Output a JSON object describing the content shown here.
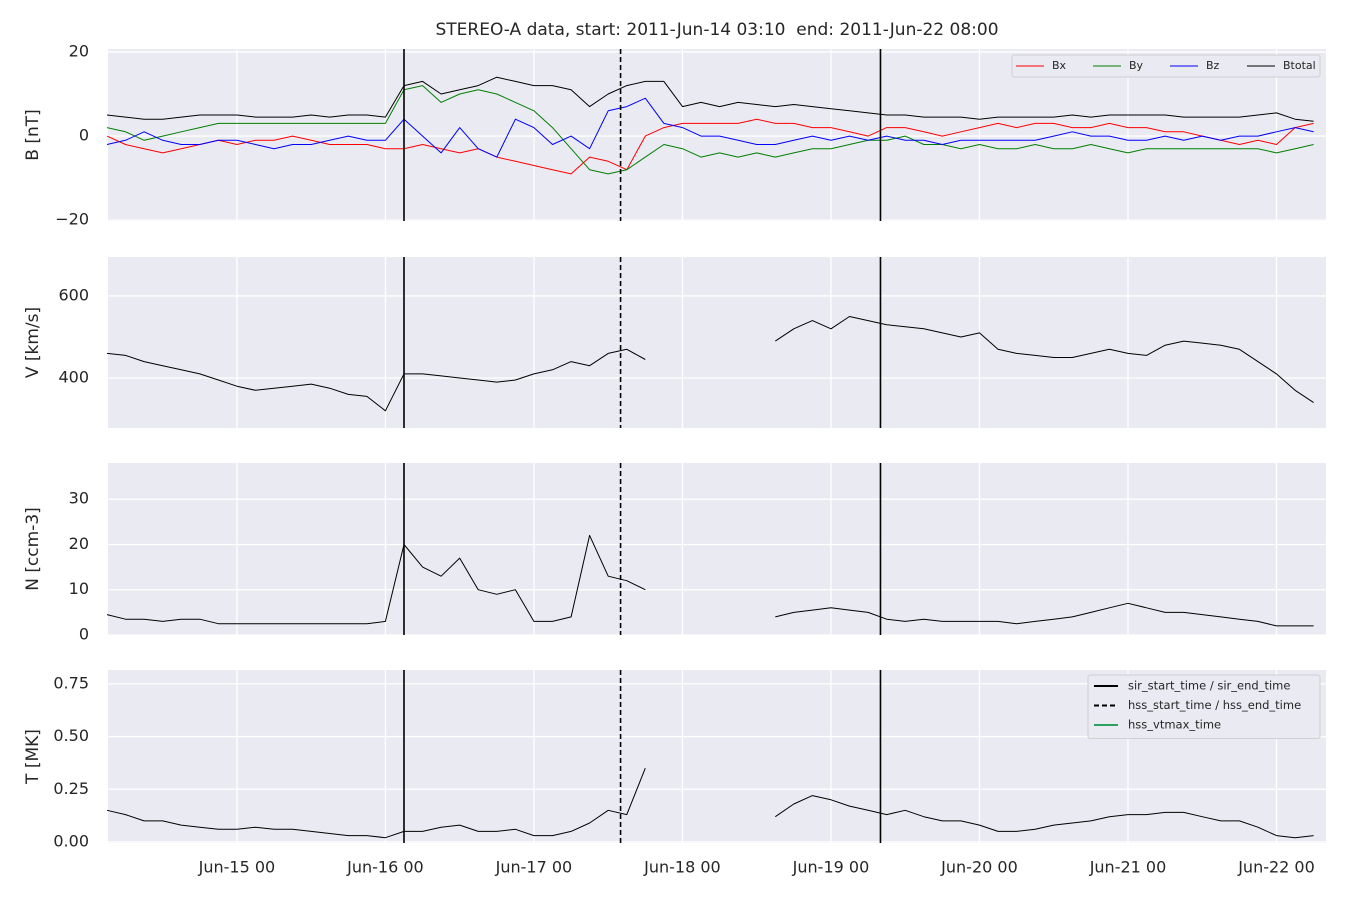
{
  "chart_data": [
    {
      "type": "line",
      "title": "STEREO-A data, start: 2011-Jun-14 03:10  end: 2011-Jun-22 08:00",
      "ylabel": "B [nT]",
      "xlim": [
        "Jun-14 03:10",
        "Jun-22 08:00"
      ],
      "ylim": [
        -20.2,
        20.7
      ],
      "yticks": [
        {
          "value": -20,
          "label": "−20"
        },
        0,
        20
      ],
      "grid": true,
      "legend": "upper right",
      "legend_ncol": 4,
      "x": [
        "Jun-14 03",
        "Jun-14 06",
        "Jun-14 09",
        "Jun-14 12",
        "Jun-14 15",
        "Jun-14 18",
        "Jun-14 21",
        "Jun-15 00",
        "Jun-15 03",
        "Jun-15 06",
        "Jun-15 09",
        "Jun-15 12",
        "Jun-15 15",
        "Jun-15 18",
        "Jun-15 21",
        "Jun-16 00",
        "Jun-16 03",
        "Jun-16 06",
        "Jun-16 09",
        "Jun-16 12",
        "Jun-16 15",
        "Jun-16 18",
        "Jun-16 21",
        "Jun-17 00",
        "Jun-17 03",
        "Jun-17 06",
        "Jun-17 09",
        "Jun-17 12",
        "Jun-17 15",
        "Jun-17 18",
        "Jun-17 21",
        "Jun-18 00",
        "Jun-18 03",
        "Jun-18 06",
        "Jun-18 09",
        "Jun-18 12",
        "Jun-18 15",
        "Jun-18 18",
        "Jun-18 21",
        "Jun-19 00",
        "Jun-19 03",
        "Jun-19 06",
        "Jun-19 09",
        "Jun-19 12",
        "Jun-19 15",
        "Jun-19 18",
        "Jun-19 21",
        "Jun-20 00",
        "Jun-20 03",
        "Jun-20 06",
        "Jun-20 09",
        "Jun-20 12",
        "Jun-20 15",
        "Jun-20 18",
        "Jun-20 21",
        "Jun-21 00",
        "Jun-21 03",
        "Jun-21 06",
        "Jun-21 09",
        "Jun-21 12",
        "Jun-21 15",
        "Jun-21 18",
        "Jun-21 21",
        "Jun-22 00",
        "Jun-22 03",
        "Jun-22 06"
      ],
      "series": [
        {
          "name": "Bx",
          "color": "#ff0000",
          "values": [
            0,
            -2,
            -3,
            -4,
            -3,
            -2,
            -1,
            -2,
            -1,
            -1,
            0,
            -1,
            -2,
            -2,
            -2,
            -3,
            -3,
            -2,
            -3,
            -4,
            -3,
            -5,
            -6,
            -7,
            -8,
            -9,
            -5,
            -6,
            -8,
            0,
            2,
            3,
            3,
            3,
            3,
            4,
            3,
            3,
            2,
            2,
            1,
            0,
            2,
            2,
            1,
            0,
            1,
            2,
            3,
            2,
            3,
            3,
            2,
            2,
            3,
            2,
            2,
            1,
            1,
            0,
            -1,
            -2,
            -1,
            -2,
            2,
            3
          ]
        },
        {
          "name": "By",
          "color": "#008000",
          "values": [
            2,
            1,
            -1,
            0,
            1,
            2,
            3,
            3,
            3,
            3,
            3,
            3,
            3,
            3,
            3,
            3,
            11,
            12,
            8,
            10,
            11,
            10,
            8,
            6,
            2,
            -3,
            -8,
            -9,
            -8,
            -5,
            -2,
            -3,
            -5,
            -4,
            -5,
            -4,
            -5,
            -4,
            -3,
            -3,
            -2,
            -1,
            -1,
            0,
            -2,
            -2,
            -3,
            -2,
            -3,
            -3,
            -2,
            -3,
            -3,
            -2,
            -3,
            -4,
            -3,
            -3,
            -3,
            -3,
            -3,
            -3,
            -3,
            -4,
            -3,
            -2
          ]
        },
        {
          "name": "Bz",
          "color": "#0000ff",
          "values": [
            -2,
            -1,
            1,
            -1,
            -2,
            -2,
            -1,
            -1,
            -2,
            -3,
            -2,
            -2,
            -1,
            0,
            -1,
            -1,
            4,
            0,
            -4,
            2,
            -3,
            -5,
            4,
            2,
            -2,
            0,
            -3,
            6,
            7,
            9,
            3,
            2,
            0,
            0,
            -1,
            -2,
            -2,
            -1,
            0,
            -1,
            0,
            -1,
            0,
            -1,
            -1,
            -2,
            -1,
            -1,
            -1,
            -1,
            -1,
            0,
            1,
            0,
            0,
            -1,
            -1,
            0,
            -1,
            0,
            -1,
            0,
            0,
            1,
            2,
            1
          ]
        },
        {
          "name": "Btotal",
          "color": "#000000",
          "values": [
            5,
            4.5,
            4,
            4,
            4.5,
            5,
            5,
            5,
            4.5,
            4.5,
            4.5,
            5,
            4.5,
            5,
            5,
            4.5,
            12,
            13,
            10,
            11,
            12,
            14,
            13,
            12,
            12,
            11,
            7,
            10,
            12,
            13,
            13,
            7,
            8,
            7,
            8,
            7.5,
            7,
            7.5,
            7,
            6.5,
            6,
            5.5,
            5,
            5,
            4.5,
            4.5,
            4.5,
            4,
            4.5,
            4.5,
            4.5,
            4.5,
            5,
            4.5,
            5,
            5,
            5,
            5,
            4.5,
            4.5,
            4.5,
            4.5,
            5,
            5.5,
            4,
            3.5
          ]
        }
      ]
    },
    {
      "type": "line",
      "ylabel": "V [km/s]",
      "xlim": [
        "Jun-14 03:10",
        "Jun-22 08:00"
      ],
      "ylim": [
        278,
        695
      ],
      "yticks": [
        400,
        600
      ],
      "grid": true,
      "x": [
        "Jun-14 03",
        "Jun-14 06",
        "Jun-14 09",
        "Jun-14 12",
        "Jun-14 15",
        "Jun-14 18",
        "Jun-14 21",
        "Jun-15 00",
        "Jun-15 03",
        "Jun-15 06",
        "Jun-15 09",
        "Jun-15 12",
        "Jun-15 15",
        "Jun-15 18",
        "Jun-15 21",
        "Jun-16 00",
        "Jun-16 03",
        "Jun-16 06",
        "Jun-16 09",
        "Jun-16 12",
        "Jun-16 15",
        "Jun-16 18",
        "Jun-16 21",
        "Jun-17 00",
        "Jun-17 03",
        "Jun-17 06",
        "Jun-17 09",
        "Jun-17 12",
        "Jun-17 15",
        "Jun-17 18",
        "Jun-17 21",
        "Jun-18 00",
        "Jun-18 03",
        "Jun-18 06",
        "Jun-18 09",
        "Jun-18 12",
        "Jun-18 15",
        "Jun-18 18",
        "Jun-18 21",
        "Jun-19 00",
        "Jun-19 03",
        "Jun-19 06",
        "Jun-19 09",
        "Jun-19 12",
        "Jun-19 15",
        "Jun-19 18",
        "Jun-19 21",
        "Jun-20 00",
        "Jun-20 03",
        "Jun-20 06",
        "Jun-20 09",
        "Jun-20 12",
        "Jun-20 15",
        "Jun-20 18",
        "Jun-20 21",
        "Jun-21 00",
        "Jun-21 03",
        "Jun-21 06",
        "Jun-21 09",
        "Jun-21 12",
        "Jun-21 15",
        "Jun-21 18",
        "Jun-21 21",
        "Jun-22 00",
        "Jun-22 03",
        "Jun-22 06"
      ],
      "series": [
        {
          "color": "#000000",
          "values": [
            460,
            455,
            440,
            430,
            420,
            410,
            395,
            380,
            370,
            375,
            380,
            385,
            375,
            360,
            355,
            320,
            410,
            410,
            405,
            400,
            395,
            390,
            395,
            410,
            420,
            440,
            430,
            460,
            470,
            445,
            null,
            null,
            null,
            null,
            null,
            null,
            490,
            520,
            540,
            520,
            550,
            540,
            530,
            525,
            520,
            510,
            500,
            510,
            470,
            460,
            455,
            450,
            450,
            460,
            470,
            460,
            455,
            480,
            490,
            485,
            480,
            470,
            440,
            410,
            370,
            340
          ]
        }
      ]
    },
    {
      "type": "line",
      "ylabel": "N [ccm-3]",
      "xlim": [
        "Jun-14 03:10",
        "Jun-22 08:00"
      ],
      "ylim": [
        0,
        38
      ],
      "yticks": [
        0,
        10,
        20,
        30
      ],
      "grid": true,
      "x": [
        "Jun-14 03",
        "Jun-14 06",
        "Jun-14 09",
        "Jun-14 12",
        "Jun-14 15",
        "Jun-14 18",
        "Jun-14 21",
        "Jun-15 00",
        "Jun-15 03",
        "Jun-15 06",
        "Jun-15 09",
        "Jun-15 12",
        "Jun-15 15",
        "Jun-15 18",
        "Jun-15 21",
        "Jun-16 00",
        "Jun-16 03",
        "Jun-16 06",
        "Jun-16 09",
        "Jun-16 12",
        "Jun-16 15",
        "Jun-16 18",
        "Jun-16 21",
        "Jun-17 00",
        "Jun-17 03",
        "Jun-17 06",
        "Jun-17 09",
        "Jun-17 12",
        "Jun-17 15",
        "Jun-17 18",
        "Jun-17 21",
        "Jun-18 00",
        "Jun-18 03",
        "Jun-18 06",
        "Jun-18 09",
        "Jun-18 12",
        "Jun-18 15",
        "Jun-18 18",
        "Jun-18 21",
        "Jun-19 00",
        "Jun-19 03",
        "Jun-19 06",
        "Jun-19 09",
        "Jun-19 12",
        "Jun-19 15",
        "Jun-19 18",
        "Jun-19 21",
        "Jun-20 00",
        "Jun-20 03",
        "Jun-20 06",
        "Jun-20 09",
        "Jun-20 12",
        "Jun-20 15",
        "Jun-20 18",
        "Jun-20 21",
        "Jun-21 00",
        "Jun-21 03",
        "Jun-21 06",
        "Jun-21 09",
        "Jun-21 12",
        "Jun-21 15",
        "Jun-21 18",
        "Jun-21 21",
        "Jun-22 00",
        "Jun-22 03",
        "Jun-22 06"
      ],
      "series": [
        {
          "color": "#000000",
          "values": [
            4.5,
            3.5,
            3.5,
            3,
            3.5,
            3.5,
            2.5,
            2.5,
            2.5,
            2.5,
            2.5,
            2.5,
            2.5,
            2.5,
            2.5,
            3,
            20,
            15,
            13,
            17,
            10,
            9,
            10,
            3,
            3,
            4,
            22,
            13,
            12,
            10,
            null,
            null,
            null,
            null,
            null,
            null,
            4,
            5,
            5.5,
            6,
            5.5,
            5,
            3.5,
            3,
            3.5,
            3,
            3,
            3,
            3,
            2.5,
            3,
            3.5,
            4,
            5,
            6,
            7,
            6,
            5,
            5,
            4.5,
            4,
            3.5,
            3,
            2,
            2,
            2
          ]
        }
      ]
    },
    {
      "type": "line",
      "ylabel": "T [MK]",
      "xlim": [
        "Jun-14 03:10",
        "Jun-22 08:00"
      ],
      "ylim": [
        -0.005,
        0.816
      ],
      "yticks": [
        {
          "value": 0,
          "label": "0.00"
        },
        {
          "value": 0.25,
          "label": "0.25"
        },
        {
          "value": 0.5,
          "label": "0.50"
        },
        {
          "value": 0.75,
          "label": "0.75"
        }
      ],
      "xticks": [
        "Jun-15 00",
        "Jun-16 00",
        "Jun-17 00",
        "Jun-18 00",
        "Jun-19 00",
        "Jun-20 00",
        "Jun-21 00",
        "Jun-22 00"
      ],
      "grid": true,
      "legend": "upper right",
      "events": [
        {
          "name": "sir_start_time / sir_end_time",
          "color": "#000000",
          "style": "solid",
          "x": [
            "Jun-16 03",
            "Jun-19 08"
          ]
        },
        {
          "name": "hss_start_time / hss_end_time",
          "color": "#000000",
          "style": "dashed",
          "x": [
            "Jun-17 14"
          ]
        },
        {
          "name": "hss_vtmax_time",
          "color": "#2ca25f",
          "style": "solid",
          "x": []
        }
      ],
      "x": [
        "Jun-14 03",
        "Jun-14 06",
        "Jun-14 09",
        "Jun-14 12",
        "Jun-14 15",
        "Jun-14 18",
        "Jun-14 21",
        "Jun-15 00",
        "Jun-15 03",
        "Jun-15 06",
        "Jun-15 09",
        "Jun-15 12",
        "Jun-15 15",
        "Jun-15 18",
        "Jun-15 21",
        "Jun-16 00",
        "Jun-16 03",
        "Jun-16 06",
        "Jun-16 09",
        "Jun-16 12",
        "Jun-16 15",
        "Jun-16 18",
        "Jun-16 21",
        "Jun-17 00",
        "Jun-17 03",
        "Jun-17 06",
        "Jun-17 09",
        "Jun-17 12",
        "Jun-17 15",
        "Jun-17 18",
        "Jun-17 21",
        "Jun-18 00",
        "Jun-18 03",
        "Jun-18 06",
        "Jun-18 09",
        "Jun-18 12",
        "Jun-18 15",
        "Jun-18 18",
        "Jun-18 21",
        "Jun-19 00",
        "Jun-19 03",
        "Jun-19 06",
        "Jun-19 09",
        "Jun-19 12",
        "Jun-19 15",
        "Jun-19 18",
        "Jun-19 21",
        "Jun-20 00",
        "Jun-20 03",
        "Jun-20 06",
        "Jun-20 09",
        "Jun-20 12",
        "Jun-20 15",
        "Jun-20 18",
        "Jun-20 21",
        "Jun-21 00",
        "Jun-21 03",
        "Jun-21 06",
        "Jun-21 09",
        "Jun-21 12",
        "Jun-21 15",
        "Jun-21 18",
        "Jun-21 21",
        "Jun-22 00",
        "Jun-22 03",
        "Jun-22 06"
      ],
      "series": [
        {
          "color": "#000000",
          "values": [
            0.15,
            0.13,
            0.1,
            0.1,
            0.08,
            0.07,
            0.06,
            0.06,
            0.07,
            0.06,
            0.06,
            0.05,
            0.04,
            0.03,
            0.03,
            0.02,
            0.05,
            0.05,
            0.07,
            0.08,
            0.05,
            0.05,
            0.06,
            0.03,
            0.03,
            0.05,
            0.09,
            0.15,
            0.13,
            0.35,
            null,
            null,
            null,
            null,
            null,
            null,
            0.12,
            0.18,
            0.22,
            0.2,
            0.17,
            0.15,
            0.13,
            0.15,
            0.12,
            0.1,
            0.1,
            0.08,
            0.05,
            0.05,
            0.06,
            0.08,
            0.09,
            0.1,
            0.12,
            0.13,
            0.13,
            0.14,
            0.14,
            0.12,
            0.1,
            0.1,
            0.07,
            0.03,
            0.02,
            0.03
          ]
        }
      ]
    }
  ]
}
